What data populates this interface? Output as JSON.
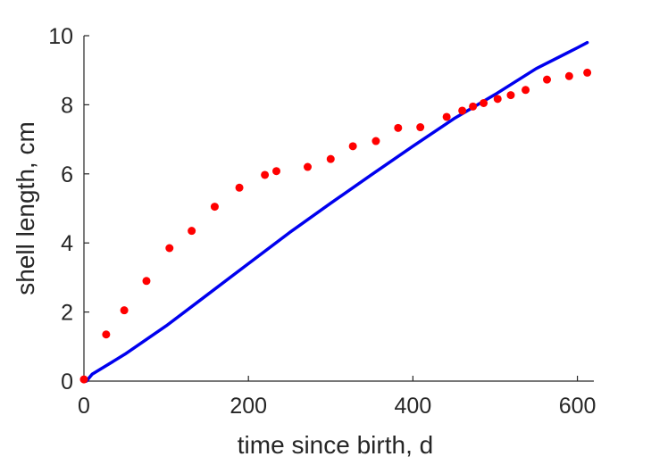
{
  "chart_data": {
    "type": "scatter",
    "title": "",
    "xlabel": "time since birth, d",
    "ylabel": "shell length, cm",
    "xlim": [
      0,
      620
    ],
    "ylim": [
      0,
      10
    ],
    "xticks": [
      0,
      200,
      400,
      600
    ],
    "yticks": [
      0,
      2,
      4,
      6,
      8,
      10
    ],
    "grid": false,
    "legend": "none",
    "series": [
      {
        "kind": "points",
        "color": "#ff0000",
        "x": [
          0,
          27,
          49,
          76,
          104,
          131,
          159,
          189,
          220,
          234,
          272,
          300,
          327,
          355,
          382,
          409,
          441,
          460,
          473,
          486,
          503,
          519,
          537,
          563,
          590,
          612
        ],
        "y": [
          0.05,
          1.35,
          2.05,
          2.9,
          3.85,
          4.35,
          5.05,
          5.6,
          5.97,
          6.08,
          6.2,
          6.43,
          6.8,
          6.95,
          7.33,
          7.35,
          7.65,
          7.83,
          7.95,
          8.05,
          8.17,
          8.28,
          8.43,
          8.73,
          8.83,
          8.93
        ]
      },
      {
        "kind": "line",
        "color": "#0000ee",
        "x": [
          3,
          10,
          50,
          100,
          150,
          200,
          250,
          300,
          350,
          400,
          450,
          500,
          550,
          600,
          612
        ],
        "y": [
          0,
          0.2,
          0.78,
          1.6,
          2.5,
          3.4,
          4.3,
          5.15,
          5.98,
          6.8,
          7.6,
          8.3,
          9.05,
          9.65,
          9.8
        ]
      }
    ]
  }
}
